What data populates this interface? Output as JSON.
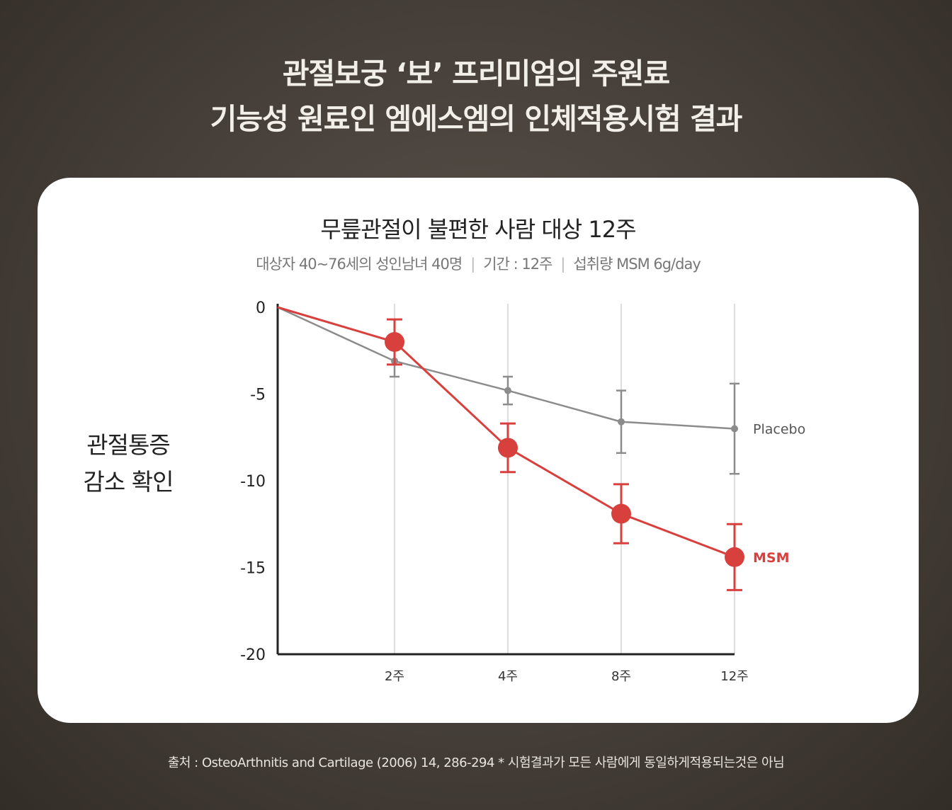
{
  "headline": {
    "line1": "관절보궁 ‘보’ 프리미엄의 주원료",
    "line2": "기능성 원료인 엠에스엠의 인체적용시험 결과"
  },
  "card": {
    "title": "무릎관절이 불편한 사람 대상 12주",
    "subtitle_parts": [
      "대상자 40~76세의 성인남녀 40명",
      "기간 : 12주",
      "섭취량 MSM 6g/day"
    ],
    "side_label_line1": "관절통증",
    "side_label_line2": "감소 확인"
  },
  "chart_data": {
    "type": "line",
    "x": [
      "0",
      "2주",
      "4주",
      "8주",
      "12주"
    ],
    "xticklabels": [
      "2주",
      "4주",
      "8주",
      "12주"
    ],
    "yticks": [
      0,
      -5,
      -10,
      -15,
      -20
    ],
    "ylim": [
      -20,
      0
    ],
    "grid": "vertical",
    "series": [
      {
        "name": "Placebo",
        "color": "#8c8c8c",
        "values": [
          0,
          -3.1,
          -4.8,
          -6.6,
          -7.0
        ],
        "error": [
          0,
          0.9,
          0.8,
          1.8,
          2.6
        ]
      },
      {
        "name": "MSM",
        "color": "#d8403e",
        "values": [
          0,
          -2.0,
          -8.1,
          -11.9,
          -14.4
        ],
        "error": [
          0,
          1.3,
          1.4,
          1.7,
          1.9
        ]
      }
    ]
  },
  "footer": "출처 : OsteoArthnitis and Cartilage (2006) 14, 286-294 * 시험결과가 모든 사람에게 동일하게적용되는것은 아님"
}
